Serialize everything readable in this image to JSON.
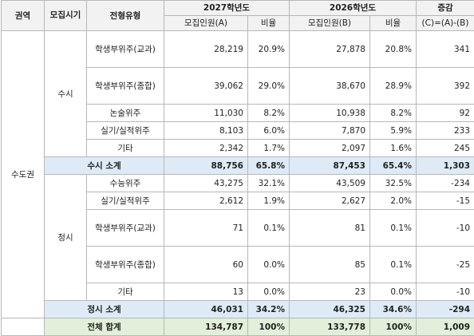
{
  "header": {
    "region": "권역",
    "period": "모집시기",
    "type": "전형유형",
    "year_a": "2027학년도",
    "year_b": "2026학년도",
    "change": "증감",
    "recruit_a": "모집인원(A)",
    "ratio_a": "비율",
    "recruit_b": "모집인원(B)",
    "ratio_b": "비율",
    "change_formula": "(C)=(A)-(B)"
  },
  "region": "수도권",
  "susi": {
    "label": "수시",
    "rows": [
      {
        "type": "학생부위주(교과)",
        "a": "28,219",
        "ra": "20.9%",
        "b": "27,878",
        "rb": "20.8%",
        "c": "341"
      },
      {
        "type": "학생부위주(종합)",
        "a": "39,062",
        "ra": "29.0%",
        "b": "38,670",
        "rb": "28.9%",
        "c": "392"
      },
      {
        "type": "논술위주",
        "a": "11,030",
        "ra": "8.2%",
        "b": "10,938",
        "rb": "8.2%",
        "c": "92"
      },
      {
        "type": "실기/실적위주",
        "a": "8,103",
        "ra": "6.0%",
        "b": "7,870",
        "rb": "5.9%",
        "c": "233"
      },
      {
        "type": "기타",
        "a": "2,342",
        "ra": "1.7%",
        "b": "2,097",
        "rb": "1.6%",
        "c": "245"
      }
    ],
    "subtotal": {
      "label": "수시 소계",
      "a": "88,756",
      "ra": "65.8%",
      "b": "87,453",
      "rb": "65.4%",
      "c": "1,303"
    }
  },
  "jeongsi": {
    "label": "정시",
    "rows": [
      {
        "type": "수능위주",
        "a": "43,275",
        "ra": "32.1%",
        "b": "43,509",
        "rb": "32.5%",
        "c": "-234"
      },
      {
        "type": "실기/실적위주",
        "a": "2,612",
        "ra": "1.9%",
        "b": "2,627",
        "rb": "2.0%",
        "c": "-15"
      },
      {
        "type": "학생부위주(교과)",
        "a": "71",
        "ra": "0.1%",
        "b": "81",
        "rb": "0.1%",
        "c": "-10"
      },
      {
        "type": "학생부위주(종합)",
        "a": "60",
        "ra": "0.0%",
        "b": "85",
        "rb": "0.1%",
        "c": "-25"
      },
      {
        "type": "기타",
        "a": "13",
        "ra": "0.0%",
        "b": "23",
        "rb": "0.0%",
        "c": "-10"
      }
    ],
    "subtotal": {
      "label": "정시 소계",
      "a": "46,031",
      "ra": "34.2%",
      "b": "46,325",
      "rb": "34.6%",
      "c": "-294"
    }
  },
  "total": {
    "label": "전체 합계",
    "a": "134,787",
    "ra": "100%",
    "b": "133,778",
    "rb": "100%",
    "c": "1,009"
  }
}
